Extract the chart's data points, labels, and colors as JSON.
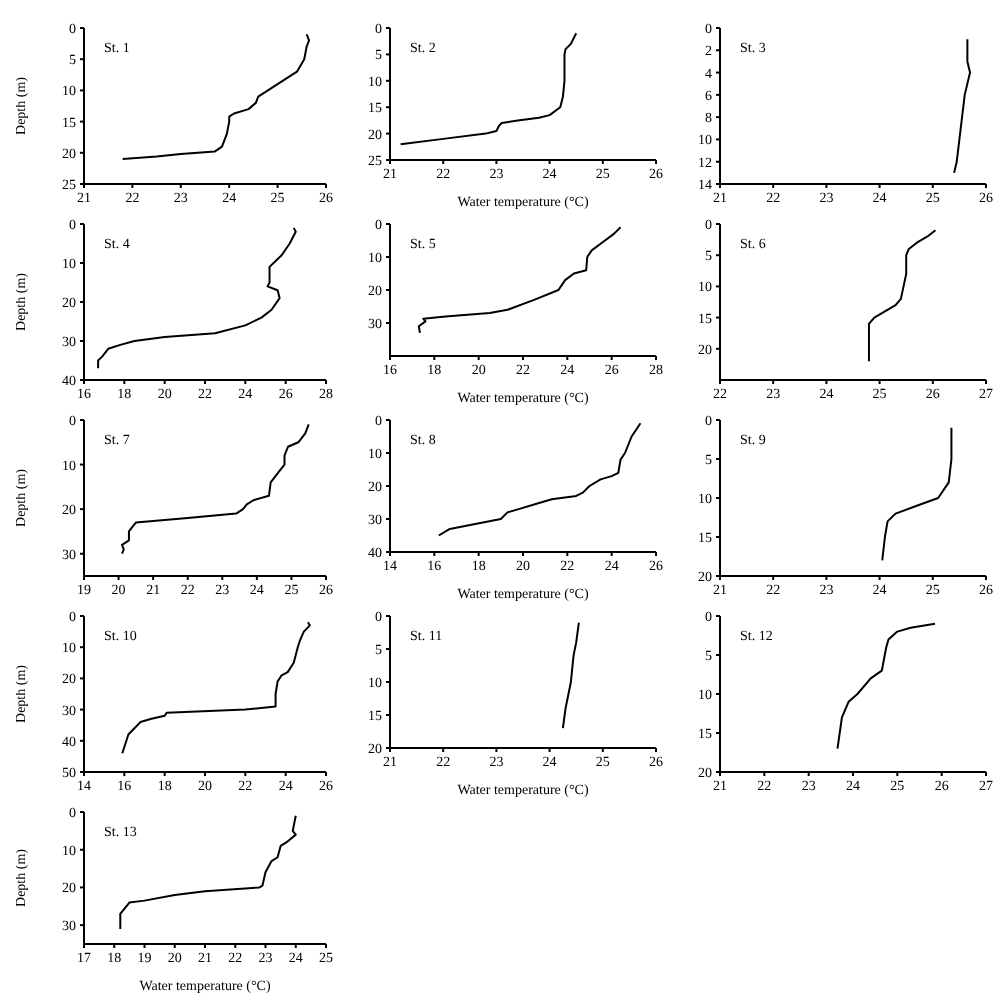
{
  "chart_data": [
    {
      "type": "line",
      "annotations": [
        "St. 1"
      ],
      "ylabel": "Depth (m)",
      "xlim": [
        21,
        26
      ],
      "xticks": [
        21,
        22,
        23,
        24,
        25,
        26
      ],
      "ylim": [
        25,
        0
      ],
      "yticks": [
        0,
        5,
        10,
        15,
        20,
        25
      ],
      "series": [
        {
          "color": "#000000",
          "x": [
            25.6,
            25.65,
            25.6,
            25.55,
            25.4,
            25.2,
            25.0,
            24.8,
            24.6,
            24.55,
            24.4,
            24.1,
            24.0,
            24.0,
            23.95,
            23.85,
            23.7,
            23.0,
            22.5,
            21.8
          ],
          "values": [
            1,
            2,
            3,
            5,
            7,
            8,
            9,
            10,
            11,
            12,
            13,
            13.7,
            14.2,
            15,
            17,
            19,
            19.8,
            20.2,
            20.6,
            21
          ]
        }
      ]
    },
    {
      "type": "line",
      "annotations": [
        "St. 2"
      ],
      "xlabel": "Water temperature (°C)",
      "xlim": [
        21,
        26
      ],
      "xticks": [
        21,
        22,
        23,
        24,
        25,
        26
      ],
      "ylim": [
        25,
        0
      ],
      "yticks": [
        0,
        5,
        10,
        15,
        20,
        25
      ],
      "series": [
        {
          "color": "#000000",
          "x": [
            24.5,
            24.45,
            24.4,
            24.3,
            24.28,
            24.28,
            24.25,
            24.2,
            24.0,
            23.8,
            23.4,
            23.1,
            23.05,
            23.0,
            22.8,
            22.0,
            21.2
          ],
          "values": [
            1,
            2,
            3,
            4,
            5,
            10,
            13,
            15,
            16.5,
            17,
            17.5,
            18,
            18.5,
            19.5,
            20,
            21,
            22
          ]
        }
      ]
    },
    {
      "type": "line",
      "annotations": [
        "St. 3"
      ],
      "xlim": [
        21,
        26
      ],
      "xticks": [
        21,
        22,
        23,
        24,
        25,
        26
      ],
      "ylim": [
        14,
        0
      ],
      "yticks": [
        0,
        2,
        4,
        6,
        8,
        10,
        12,
        14
      ],
      "series": [
        {
          "color": "#000000",
          "x": [
            25.65,
            25.65,
            25.7,
            25.6,
            25.55,
            25.5,
            25.45,
            25.4
          ],
          "values": [
            1,
            3,
            4,
            6,
            8,
            10,
            12,
            13
          ]
        }
      ]
    },
    {
      "type": "line",
      "annotations": [
        "St. 4"
      ],
      "ylabel": "Depth (m)",
      "xlim": [
        16,
        28
      ],
      "xticks": [
        16,
        18,
        20,
        22,
        24,
        26,
        28
      ],
      "ylim": [
        40,
        0
      ],
      "yticks": [
        0,
        10,
        20,
        30,
        40
      ],
      "series": [
        {
          "color": "#000000",
          "x": [
            26.4,
            26.5,
            26.2,
            25.8,
            25.2,
            25.2,
            25.1,
            25.6,
            25.7,
            25.3,
            24.8,
            24.0,
            22.5,
            20.0,
            18.5,
            17.8,
            17.2,
            16.9,
            16.7,
            16.7
          ],
          "values": [
            1,
            2,
            5,
            8,
            11,
            15,
            16,
            17,
            19,
            22,
            24,
            26,
            28,
            29,
            30,
            31,
            32,
            34,
            35,
            37
          ]
        }
      ]
    },
    {
      "type": "line",
      "annotations": [
        "St. 5"
      ],
      "xlabel": "Water temperature (°C)",
      "xlim": [
        16,
        28
      ],
      "xticks": [
        16,
        18,
        20,
        22,
        24,
        26,
        28
      ],
      "ylim": [
        40,
        0
      ],
      "yticks": [
        0,
        10,
        20,
        30
      ],
      "series": [
        {
          "color": "#000000",
          "x": [
            26.4,
            26.1,
            25.5,
            25.1,
            24.9,
            24.85,
            24.3,
            23.9,
            23.6,
            22.5,
            21.3,
            20.5,
            18.5,
            17.5,
            17.6,
            17.3,
            17.35
          ],
          "values": [
            1,
            3,
            6,
            8,
            10,
            14,
            15,
            17,
            20,
            23,
            26,
            27,
            28,
            28.7,
            29.5,
            31,
            33
          ]
        }
      ]
    },
    {
      "type": "line",
      "annotations": [
        "St. 6"
      ],
      "xlim": [
        22,
        27
      ],
      "xticks": [
        22,
        23,
        24,
        25,
        26,
        27
      ],
      "ylim": [
        25,
        0
      ],
      "yticks": [
        0,
        5,
        10,
        15,
        20
      ],
      "series": [
        {
          "color": "#000000",
          "x": [
            26.05,
            25.9,
            25.7,
            25.55,
            25.5,
            25.5,
            25.45,
            25.4,
            25.3,
            25.1,
            24.9,
            24.8,
            24.8
          ],
          "values": [
            1,
            2,
            3,
            4,
            5,
            8,
            10,
            12,
            13,
            14,
            15,
            16,
            22
          ]
        }
      ]
    },
    {
      "type": "line",
      "annotations": [
        "St. 7"
      ],
      "ylabel": "Depth (m)",
      "xlim": [
        19,
        26
      ],
      "xticks": [
        19,
        20,
        21,
        22,
        23,
        24,
        25,
        26
      ],
      "ylim": [
        35,
        0
      ],
      "yticks": [
        0,
        10,
        20,
        30
      ],
      "series": [
        {
          "color": "#000000",
          "x": [
            25.5,
            25.4,
            25.2,
            24.9,
            24.8,
            24.8,
            24.6,
            24.4,
            24.35,
            23.9,
            23.7,
            23.6,
            23.4,
            22.0,
            20.5,
            20.4,
            20.3,
            20.3,
            20.1,
            20.15,
            20.1
          ],
          "values": [
            1,
            3,
            5,
            6,
            8,
            10,
            12,
            14,
            17,
            18,
            19,
            20,
            21,
            22,
            23,
            24,
            25,
            27,
            28,
            29,
            30
          ]
        }
      ]
    },
    {
      "type": "line",
      "annotations": [
        "St. 8"
      ],
      "xlabel": "Water temperature (°C)",
      "xlim": [
        14,
        26
      ],
      "xticks": [
        14,
        16,
        18,
        20,
        22,
        24,
        26
      ],
      "ylim": [
        40,
        0
      ],
      "yticks": [
        0,
        10,
        20,
        30,
        40
      ],
      "series": [
        {
          "color": "#000000",
          "x": [
            25.3,
            24.9,
            24.6,
            24.4,
            24.3,
            24.0,
            23.5,
            23.0,
            22.7,
            22.4,
            21.3,
            20.8,
            19.8,
            19.3,
            19.0,
            17.5,
            16.7,
            16.2
          ],
          "values": [
            1,
            5,
            10,
            12,
            16,
            17,
            18,
            20,
            22,
            23,
            24,
            25,
            27,
            28,
            30,
            32,
            33,
            35
          ]
        }
      ]
    },
    {
      "type": "line",
      "annotations": [
        "St. 9"
      ],
      "xlim": [
        21,
        26
      ],
      "xticks": [
        21,
        22,
        23,
        24,
        25,
        26
      ],
      "ylim": [
        20,
        0
      ],
      "yticks": [
        0,
        5,
        10,
        15,
        20
      ],
      "series": [
        {
          "color": "#000000",
          "x": [
            25.35,
            25.35,
            25.3,
            25.1,
            24.7,
            24.3,
            24.15,
            24.1,
            24.05
          ],
          "values": [
            1,
            5,
            8,
            10,
            11,
            12,
            13,
            15,
            18
          ]
        }
      ]
    },
    {
      "type": "line",
      "annotations": [
        "St. 10"
      ],
      "ylabel": "Depth (m)",
      "xlim": [
        14,
        26
      ],
      "xticks": [
        14,
        16,
        18,
        20,
        22,
        24,
        26
      ],
      "ylim": [
        50,
        0
      ],
      "yticks": [
        0,
        10,
        20,
        30,
        40,
        50
      ],
      "series": [
        {
          "color": "#000000",
          "x": [
            25.1,
            25.2,
            24.9,
            24.7,
            24.6,
            24.4,
            24.1,
            23.8,
            23.6,
            23.5,
            23.5,
            22.0,
            18.1,
            18.0,
            17.3,
            16.8,
            16.5,
            16.2,
            16.0,
            15.9
          ],
          "values": [
            2,
            3,
            5,
            8,
            10,
            15,
            18,
            19,
            21,
            25,
            29,
            30,
            31,
            32,
            33,
            34,
            36,
            38,
            42,
            44
          ]
        }
      ]
    },
    {
      "type": "line",
      "annotations": [
        "St. 11"
      ],
      "xlabel": "Water temperature (°C)",
      "xlim": [
        21,
        26
      ],
      "xticks": [
        21,
        22,
        23,
        24,
        25,
        26
      ],
      "ylim": [
        20,
        0
      ],
      "yticks": [
        0,
        5,
        10,
        15,
        20
      ],
      "series": [
        {
          "color": "#000000",
          "x": [
            24.55,
            24.5,
            24.45,
            24.4,
            24.3,
            24.25
          ],
          "values": [
            1,
            4,
            6,
            10,
            14,
            17
          ]
        }
      ]
    },
    {
      "type": "line",
      "annotations": [
        "St. 12"
      ],
      "xlim": [
        21,
        27
      ],
      "xticks": [
        21,
        22,
        23,
        24,
        25,
        26,
        27
      ],
      "ylim": [
        20,
        0
      ],
      "yticks": [
        0,
        5,
        10,
        15,
        20
      ],
      "series": [
        {
          "color": "#000000",
          "x": [
            25.85,
            25.3,
            25.0,
            24.8,
            24.75,
            24.65,
            24.4,
            24.1,
            23.9,
            23.75,
            23.7,
            23.65
          ],
          "values": [
            1,
            1.5,
            2,
            3,
            4,
            7,
            8,
            10,
            11,
            13,
            15,
            17
          ]
        }
      ]
    },
    {
      "type": "line",
      "annotations": [
        "St. 13"
      ],
      "ylabel": "Depth (m)",
      "xlabel": "Water temperature (°C)",
      "xlim": [
        17,
        25
      ],
      "xticks": [
        17,
        18,
        19,
        20,
        21,
        22,
        23,
        24,
        25
      ],
      "ylim": [
        35,
        0
      ],
      "yticks": [
        0,
        10,
        20,
        30
      ],
      "series": [
        {
          "color": "#000000",
          "x": [
            24.0,
            23.9,
            24.0,
            23.7,
            23.5,
            23.4,
            23.2,
            23.0,
            22.9,
            22.8,
            21.0,
            20.0,
            19.0,
            18.5,
            18.4,
            18.2,
            18.2
          ],
          "values": [
            1,
            5,
            6,
            8,
            9,
            12,
            13,
            16,
            19.5,
            20,
            21,
            22,
            23.5,
            24,
            25,
            27,
            31
          ]
        }
      ]
    }
  ]
}
